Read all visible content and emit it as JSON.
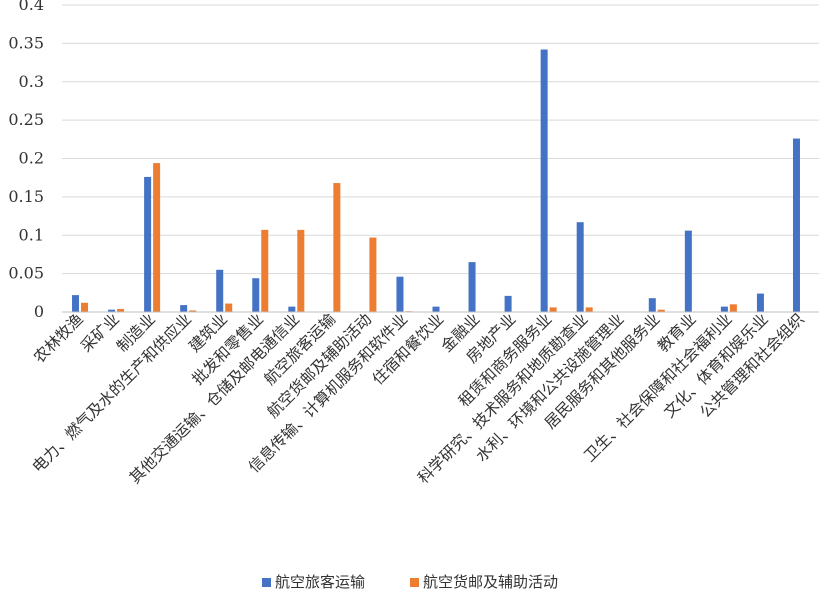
{
  "chart_data": {
    "type": "bar",
    "title": "",
    "xlabel": "",
    "ylabel": "",
    "ylim": [
      0,
      0.4
    ],
    "yticks": [
      "0",
      "0.05",
      "0.1",
      "0.15",
      "0.2",
      "0.25",
      "0.3",
      "0.35",
      "0.4"
    ],
    "grid": true,
    "legend_position": "bottom",
    "categories": [
      "农林牧渔",
      "采矿业",
      "制造业",
      "电力、燃气及水的生产和供应业",
      "建筑业",
      "批发和零售业",
      "其他交通运输、仓储及邮电通信业",
      "航空旅客运输",
      "航空货邮及辅助活动",
      "信息传输、计算机服务和软件业",
      "住宿和餐饮业",
      "金融业",
      "房地产业",
      "租赁和商务服务业",
      "科学研究、技术服务和地质勘查业",
      "水利、环境和公共设施管理业",
      "居民服务和其他服务业",
      "教育业",
      "卫生、社会保障和社会福利业",
      "文化、体育和娱乐业",
      "公共管理和社会组织"
    ],
    "series": [
      {
        "name": "航空旅客运输",
        "color": "#4472C4",
        "values": [
          0.022,
          0.003,
          0.176,
          0.009,
          0.055,
          0.044,
          0.007,
          0.0,
          0.0,
          0.046,
          0.007,
          0.065,
          0.021,
          0.342,
          0.117,
          0.0,
          0.018,
          0.106,
          0.007,
          0.024,
          0.226
        ]
      },
      {
        "name": "航空货邮及辅助活动",
        "color": "#ED7D31",
        "values": [
          0.012,
          0.004,
          0.194,
          0.002,
          0.011,
          0.107,
          0.107,
          0.168,
          0.097,
          0.001,
          0.0,
          0.0,
          0.0,
          0.006,
          0.006,
          0.0,
          0.003,
          0.0,
          0.01,
          0.0,
          0.0
        ]
      }
    ]
  }
}
